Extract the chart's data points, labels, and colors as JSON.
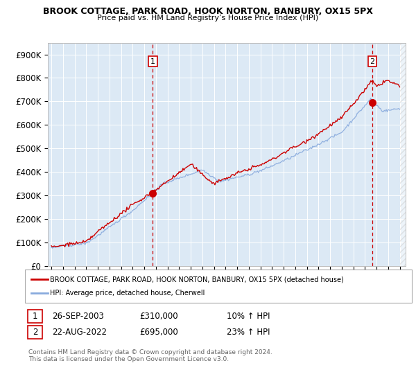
{
  "title": "BROOK COTTAGE, PARK ROAD, HOOK NORTON, BANBURY, OX15 5PX",
  "subtitle": "Price paid vs. HM Land Registry’s House Price Index (HPI)",
  "plot_bg": "#dce9f5",
  "ylim": [
    0,
    950000
  ],
  "yticks": [
    0,
    100000,
    200000,
    300000,
    400000,
    500000,
    600000,
    700000,
    800000,
    900000
  ],
  "ytick_labels": [
    "£0",
    "£100K",
    "£200K",
    "£300K",
    "£400K",
    "£500K",
    "£600K",
    "£700K",
    "£800K",
    "£900K"
  ],
  "sale1_year": 2003.73,
  "sale1_price": 310000,
  "sale1_label": "1",
  "sale1_date": "26-SEP-2003",
  "sale1_pct": "10%",
  "sale2_year": 2022.64,
  "sale2_price": 695000,
  "sale2_label": "2",
  "sale2_date": "22-AUG-2022",
  "sale2_pct": "23%",
  "red_line_color": "#cc0000",
  "blue_line_color": "#88aadd",
  "marker_color": "#cc0000",
  "dashed_line_color": "#cc0000",
  "legend_red_label": "BROOK COTTAGE, PARK ROAD, HOOK NORTON, BANBURY, OX15 5PX (detached house)",
  "legend_blue_label": "HPI: Average price, detached house, Cherwell",
  "footer1": "Contains HM Land Registry data © Crown copyright and database right 2024.",
  "footer2": "This data is licensed under the Open Government Licence v3.0."
}
